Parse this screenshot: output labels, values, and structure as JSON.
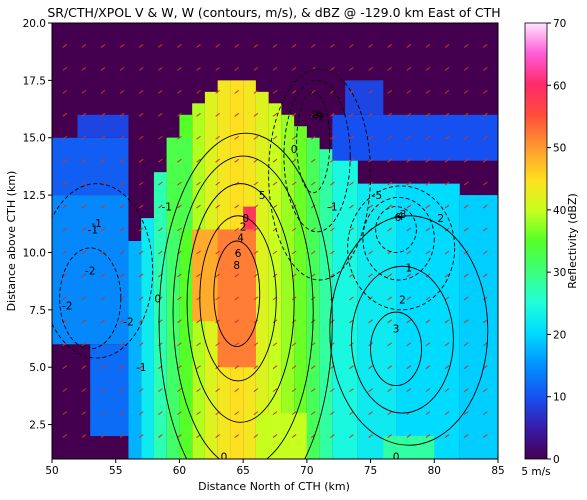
{
  "chart_data": {
    "type": "heatmap",
    "title": "SR/CTH/XPOL V & W, W (contours, m/s), & dBZ @ -129.0 km East of CTH",
    "xlabel": "Distance North of CTH (km)",
    "ylabel": "Distance above CTH (km)",
    "xlim": [
      50,
      85
    ],
    "ylim": [
      1,
      20
    ],
    "x_ticks": [
      "50",
      "55",
      "60",
      "65",
      "70",
      "75",
      "80",
      "85"
    ],
    "y_ticks": [
      "2.5",
      "5.0",
      "7.5",
      "10.0",
      "12.5",
      "15.0",
      "17.5",
      "20.0"
    ],
    "colorbar": {
      "label": "Reflectivity (dBZ)",
      "range": [
        0,
        70
      ],
      "ticks": [
        "0",
        "10",
        "20",
        "30",
        "40",
        "50",
        "60",
        "70"
      ]
    },
    "vector_key": "5 m/s",
    "background_color": "#44004f",
    "reflectivity_columns": [
      {
        "x0": 56,
        "x1": 57,
        "y0": 1,
        "y1": 10.5,
        "dbz": 17
      },
      {
        "x0": 57,
        "x1": 58,
        "y0": 1,
        "y1": 11.5,
        "dbz": 22
      },
      {
        "x0": 58,
        "x1": 59,
        "y0": 1,
        "y1": 13.5,
        "dbz": 27
      },
      {
        "x0": 59,
        "x1": 60,
        "y0": 1,
        "y1": 15,
        "dbz": 31
      },
      {
        "x0": 60,
        "x1": 61,
        "y0": 1,
        "y1": 16,
        "dbz": 35
      },
      {
        "x0": 61,
        "x1": 62,
        "y0": 1,
        "y1": 16.5,
        "dbz": 39
      },
      {
        "x0": 62,
        "x1": 63,
        "y0": 1,
        "y1": 17,
        "dbz": 42
      },
      {
        "x0": 63,
        "x1": 64,
        "y0": 1,
        "y1": 17.5,
        "dbz": 44
      },
      {
        "x0": 64,
        "x1": 65,
        "y0": 1,
        "y1": 17.5,
        "dbz": 45
      },
      {
        "x0": 65,
        "x1": 66,
        "y0": 1,
        "y1": 17.5,
        "dbz": 44
      },
      {
        "x0": 66,
        "x1": 67,
        "y0": 1,
        "y1": 17,
        "dbz": 42
      },
      {
        "x0": 67,
        "x1": 68,
        "y0": 1,
        "y1": 16.5,
        "dbz": 40
      },
      {
        "x0": 68,
        "x1": 69,
        "y0": 1,
        "y1": 16,
        "dbz": 38
      },
      {
        "x0": 69,
        "x1": 70,
        "y0": 1,
        "y1": 15.5,
        "dbz": 36
      },
      {
        "x0": 70,
        "x1": 71,
        "y0": 1,
        "y1": 15,
        "dbz": 32
      },
      {
        "x0": 71,
        "x1": 72,
        "y0": 1,
        "y1": 14.5,
        "dbz": 28
      },
      {
        "x0": 72,
        "x1": 74,
        "y0": 1,
        "y1": 14.5,
        "dbz": 24
      },
      {
        "x0": 74,
        "x1": 77,
        "y0": 1,
        "y1": 13,
        "dbz": 22
      },
      {
        "x0": 77,
        "x1": 82,
        "y0": 1,
        "y1": 13,
        "dbz": 20
      },
      {
        "x0": 82,
        "x1": 85,
        "y0": 1,
        "y1": 12.5,
        "dbz": 19
      }
    ],
    "reflectivity_patches": [
      {
        "x0": 50,
        "x1": 56,
        "y0": 6,
        "y1": 12.5,
        "dbz": 14
      },
      {
        "x0": 50,
        "x1": 56,
        "y0": 12.5,
        "y1": 15,
        "dbz": 11
      },
      {
        "x0": 52,
        "x1": 56,
        "y0": 15,
        "y1": 16,
        "dbz": 9
      },
      {
        "x0": 53,
        "x1": 56,
        "y0": 2,
        "y1": 6,
        "dbz": 12
      },
      {
        "x0": 72,
        "x1": 85,
        "y0": 14,
        "y1": 16,
        "dbz": 10
      },
      {
        "x0": 73,
        "x1": 76,
        "y0": 16,
        "y1": 17.5,
        "dbz": 9
      },
      {
        "x0": 61,
        "x1": 65,
        "y0": 7,
        "y1": 11,
        "dbz": 49
      },
      {
        "x0": 63,
        "x1": 66,
        "y0": 5,
        "y1": 11,
        "dbz": 52
      },
      {
        "x0": 65,
        "x1": 66,
        "y0": 11,
        "y1": 12,
        "dbz": 58
      },
      {
        "x0": 59,
        "x1": 61,
        "y0": 11,
        "y1": 15,
        "dbz": 33
      },
      {
        "x0": 66,
        "x1": 70,
        "y0": 1,
        "y1": 3,
        "dbz": 40
      },
      {
        "x0": 76,
        "x1": 80,
        "y0": 1,
        "y1": 2,
        "dbz": 28
      }
    ],
    "w_contours": [
      {
        "cx": 64.5,
        "cy": 8.2,
        "rx": 1.8,
        "ry": 2.3,
        "value": 8,
        "label": "8",
        "style": "solid"
      },
      {
        "cx": 64.6,
        "cy": 8.0,
        "rx": 3.0,
        "ry": 3.6,
        "value": 6,
        "label": "6",
        "style": "solid"
      },
      {
        "cx": 64.8,
        "cy": 7.8,
        "rx": 4.2,
        "ry": 5.2,
        "value": 4,
        "label": "4",
        "style": "solid"
      },
      {
        "cx": 65.0,
        "cy": 7.4,
        "rx": 5.5,
        "ry": 6.8,
        "value": 2,
        "label": "2",
        "style": "solid"
      },
      {
        "cx": 65.2,
        "cy": 7.0,
        "rx": 6.8,
        "ry": 8.2,
        "value": 0,
        "label": "0",
        "style": "solid"
      },
      {
        "cx": 77.0,
        "cy": 5.8,
        "rx": 2.0,
        "ry": 1.6,
        "value": 3,
        "label": "3",
        "style": "solid"
      },
      {
        "cx": 77.5,
        "cy": 6.2,
        "rx": 4.0,
        "ry": 3.2,
        "value": 2,
        "label": "2",
        "style": "solid"
      },
      {
        "cx": 78.0,
        "cy": 6.6,
        "rx": 6.2,
        "ry": 5.0,
        "value": 1,
        "label": "1",
        "style": "solid"
      },
      {
        "cx": 70.5,
        "cy": 14.8,
        "rx": 1.3,
        "ry": 2.2,
        "value": -8,
        "label": "-8",
        "style": "dashed"
      },
      {
        "cx": 70.8,
        "cy": 14.2,
        "rx": 2.6,
        "ry": 3.3,
        "value": -4,
        "label": "-4",
        "style": "dashed"
      },
      {
        "cx": 71.0,
        "cy": 13.4,
        "rx": 4.0,
        "ry": 4.6,
        "value": -2,
        "label": "-2",
        "style": "dashed"
      },
      {
        "cx": 77.0,
        "cy": 11.0,
        "rx": 1.6,
        "ry": 1.0,
        "value": -6,
        "label": "-6",
        "style": "dashed"
      },
      {
        "cx": 77.2,
        "cy": 10.6,
        "rx": 2.8,
        "ry": 1.8,
        "value": -4,
        "label": "-4",
        "style": "dashed"
      },
      {
        "cx": 77.4,
        "cy": 10.2,
        "rx": 4.2,
        "ry": 2.7,
        "value": -3,
        "label": "-3",
        "style": "dashed"
      },
      {
        "cx": 53.0,
        "cy": 8.0,
        "rx": 2.4,
        "ry": 2.2,
        "value": -2,
        "label": "-2",
        "style": "dashed"
      },
      {
        "cx": 53.5,
        "cy": 9.2,
        "rx": 4.4,
        "ry": 3.8,
        "value": -1,
        "label": "-1",
        "style": "dashed"
      }
    ],
    "other_labels": [
      {
        "x": 51.2,
        "y": 7.7,
        "text": "-2"
      },
      {
        "x": 53.2,
        "y": 11.0,
        "text": "-1"
      },
      {
        "x": 57.0,
        "y": 5.0,
        "text": "-1"
      },
      {
        "x": 56.0,
        "y": 7.0,
        "text": "-2"
      },
      {
        "x": 58.3,
        "y": 8.0,
        "text": "0"
      },
      {
        "x": 66.5,
        "y": 12.5,
        "text": "5"
      },
      {
        "x": 69.0,
        "y": 14.5,
        "text": "0"
      },
      {
        "x": 72.0,
        "y": 12.0,
        "text": "-1"
      },
      {
        "x": 80.5,
        "y": 11.5,
        "text": "2"
      },
      {
        "x": 75.5,
        "y": 12.5,
        "text": "-5"
      },
      {
        "x": 63.5,
        "y": 1.1,
        "text": "0"
      },
      {
        "x": 77.0,
        "y": 1.1,
        "text": "0"
      },
      {
        "x": 59.0,
        "y": 12.0,
        "text": "-1"
      }
    ]
  }
}
